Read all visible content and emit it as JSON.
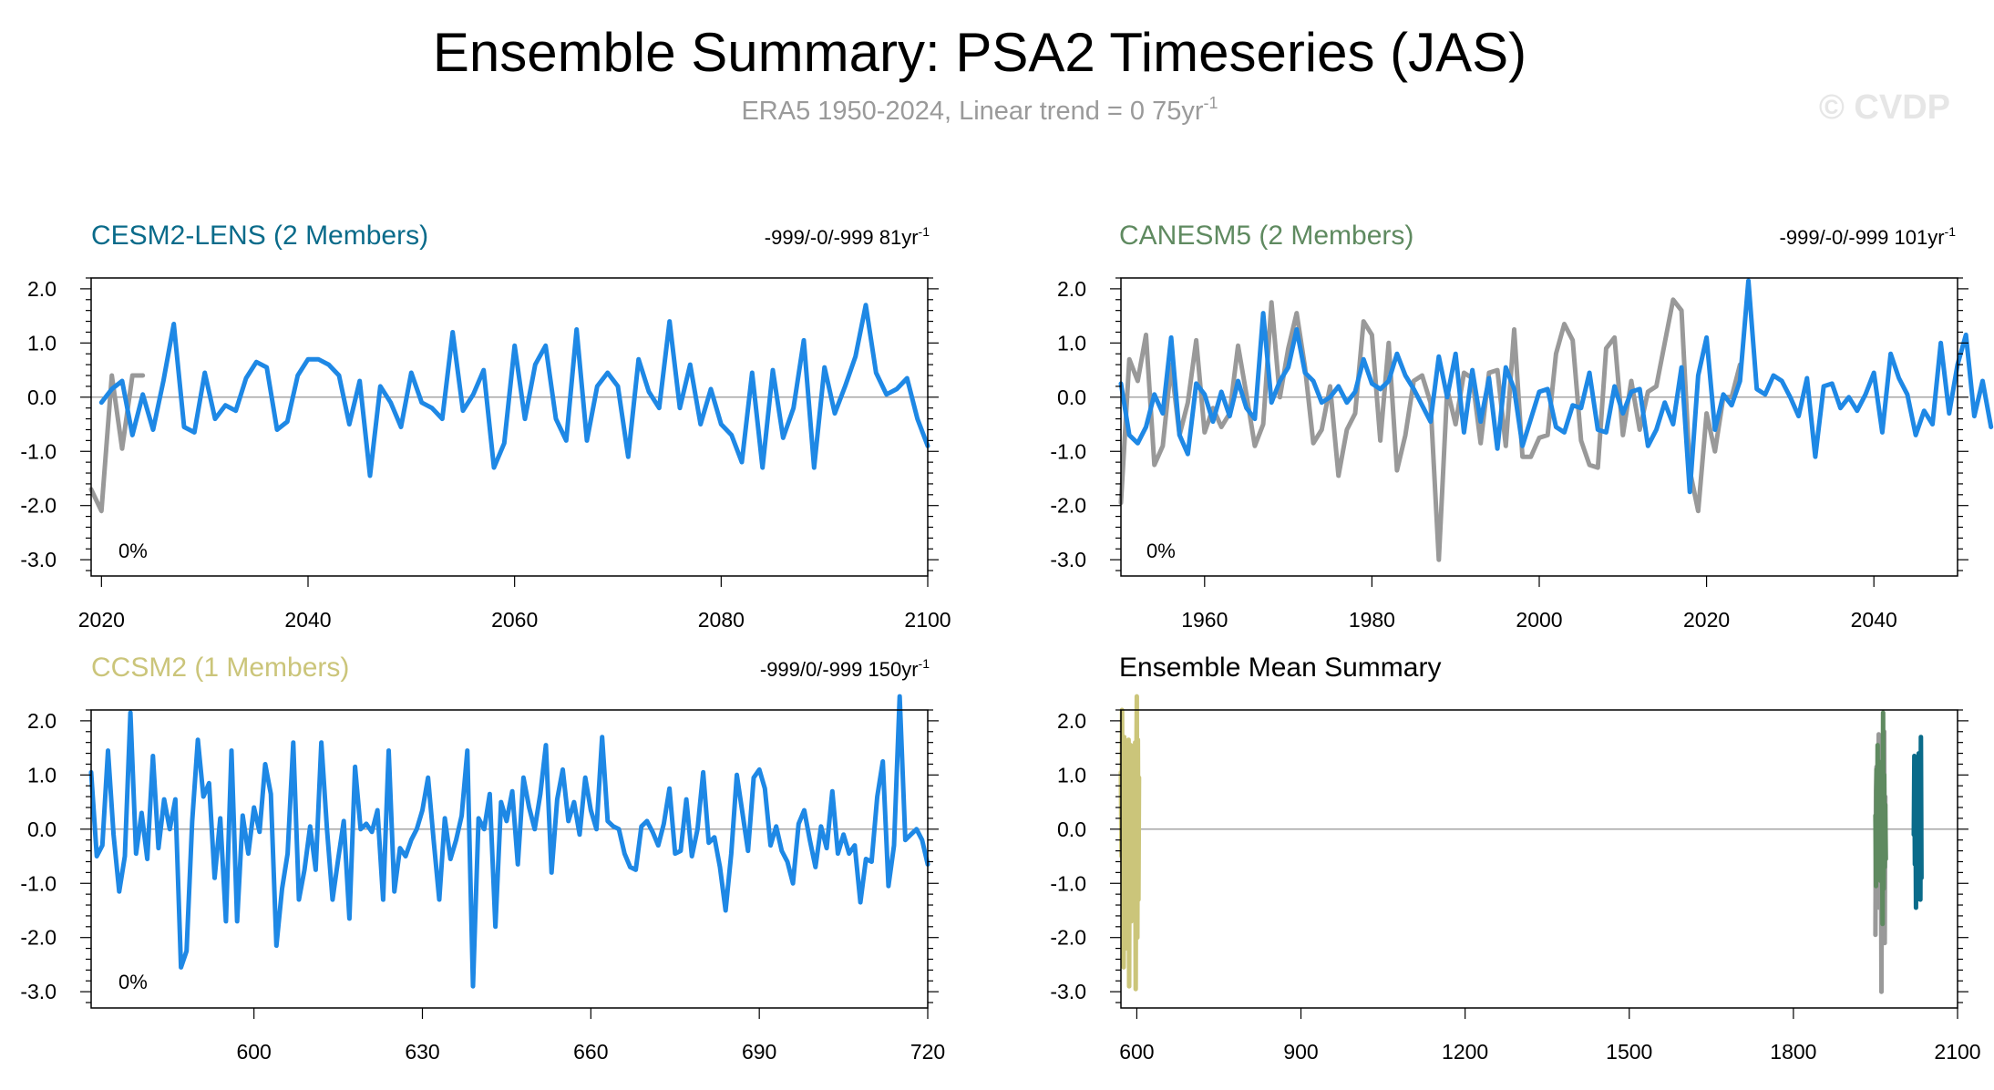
{
  "figure": {
    "title": "Ensemble Summary: PSA2 Timeseries (JAS)",
    "subtitle": "ERA5 1950-2024, Linear trend = 0 75yr",
    "subtitle_sup": "-1",
    "watermark": "© CVDP"
  },
  "colors": {
    "ensemble": "#1e88e5",
    "era5": "#999999",
    "cesm2": "#0a6b8a",
    "canesm5": "#5f8a60",
    "ccsm2": "#cbc57a"
  },
  "chart_data": [
    {
      "type": "line",
      "title": "CESM2-LENS (2 Members)",
      "trend_label": "-999/-0/-999 81yr",
      "trend_sup": "-1",
      "annotation": "0%",
      "xlim": [
        2019,
        2100
      ],
      "ylim": [
        -3.3,
        2.2
      ],
      "x_ticks": [
        2020,
        2040,
        2060,
        2080,
        2100
      ],
      "y_ticks": [
        -3,
        -2,
        -1,
        0,
        1,
        2
      ],
      "y_tick_labels": [
        "-3.0",
        "-2.0",
        "-1.0",
        "0.0",
        "1.0",
        "2.0"
      ],
      "series": [
        {
          "name": "ERA5",
          "color_key": "era5",
          "x_start": 2019,
          "values": [
            -1.7,
            -2.1,
            0.4,
            -0.95,
            0.4,
            0.4
          ]
        },
        {
          "name": "Ensemble",
          "color_key": "ensemble",
          "x_start": 2020,
          "values": [
            -0.1,
            0.15,
            0.3,
            -0.7,
            0.05,
            -0.6,
            0.3,
            1.35,
            -0.55,
            -0.65,
            0.45,
            -0.4,
            -0.15,
            -0.25,
            0.35,
            0.65,
            0.55,
            -0.6,
            -0.45,
            0.4,
            0.7,
            0.7,
            0.6,
            0.4,
            -0.5,
            0.3,
            -1.45,
            0.2,
            -0.1,
            -0.55,
            0.45,
            -0.1,
            -0.2,
            -0.4,
            1.2,
            -0.25,
            0.05,
            0.5,
            -1.3,
            -0.85,
            0.95,
            -0.4,
            0.6,
            0.95,
            -0.4,
            -0.8,
            1.25,
            -0.8,
            0.2,
            0.45,
            0.2,
            -1.1,
            0.7,
            0.1,
            -0.2,
            1.4,
            -0.2,
            0.6,
            -0.5,
            0.15,
            -0.5,
            -0.7,
            -1.2,
            0.45,
            -1.3,
            0.5,
            -0.75,
            -0.2,
            1.05,
            -1.3,
            0.55,
            -0.3,
            0.2,
            0.75,
            1.7,
            0.45,
            0.05,
            0.15,
            0.35,
            -0.4,
            -0.9
          ]
        }
      ]
    },
    {
      "type": "line",
      "title": "CANESM5 (2 Members)",
      "trend_label": "-999/-0/-999 101yr",
      "trend_sup": "-1",
      "annotation": "0%",
      "xlim": [
        1950,
        2050
      ],
      "ylim": [
        -3.3,
        2.2
      ],
      "x_ticks": [
        1960,
        1980,
        2000,
        2020,
        2040
      ],
      "y_ticks": [
        -3,
        -2,
        -1,
        0,
        1,
        2
      ],
      "y_tick_labels": [
        "-3.0",
        "-2.0",
        "-1.0",
        "0.0",
        "1.0",
        "2.0"
      ],
      "series": [
        {
          "name": "ERA5",
          "color_key": "era5",
          "x_start": 1950,
          "values": [
            -1.95,
            0.7,
            0.3,
            1.15,
            -1.25,
            -0.9,
            0.6,
            -0.7,
            -0.1,
            1.05,
            -0.65,
            -0.2,
            -0.55,
            -0.3,
            0.95,
            0.05,
            -0.9,
            -0.5,
            1.75,
            0.0,
            0.9,
            1.55,
            0.55,
            -0.85,
            -0.6,
            0.2,
            -1.45,
            -0.6,
            -0.3,
            1.4,
            1.15,
            -0.8,
            1.0,
            -1.35,
            -0.7,
            0.3,
            0.4,
            -0.1,
            -3.0,
            0.15,
            -0.5,
            0.45,
            0.35,
            -0.85,
            0.45,
            0.5,
            -0.9,
            1.25,
            -1.1,
            -1.1,
            -0.75,
            -0.7,
            0.8,
            1.35,
            1.05,
            -0.8,
            -1.25,
            -1.3,
            0.9,
            1.1,
            -0.7,
            0.3,
            -0.6,
            0.1,
            0.2,
            1.0,
            1.8,
            1.6,
            -1.35,
            -2.1,
            -0.3,
            -1.0,
            0.0,
            0.0,
            0.6
          ]
        },
        {
          "name": "Ensemble",
          "color_key": "ensemble",
          "x_start": 1950,
          "values": [
            0.25,
            -0.7,
            -0.85,
            -0.55,
            0.05,
            -0.3,
            1.1,
            -0.7,
            -1.05,
            0.25,
            0.05,
            -0.45,
            0.1,
            -0.35,
            0.3,
            -0.2,
            -0.4,
            1.55,
            -0.1,
            0.3,
            0.55,
            1.25,
            0.45,
            0.3,
            -0.1,
            0.0,
            0.2,
            -0.1,
            0.1,
            0.7,
            0.25,
            0.15,
            0.3,
            0.8,
            0.4,
            0.15,
            -0.15,
            -0.45,
            0.75,
            0.0,
            0.8,
            -0.65,
            0.5,
            -0.45,
            0.35,
            -0.95,
            0.55,
            0.15,
            -0.9,
            -0.4,
            0.1,
            0.15,
            -0.55,
            -0.65,
            -0.15,
            -0.2,
            0.45,
            -0.6,
            -0.65,
            0.2,
            -0.3,
            0.1,
            0.15,
            -0.9,
            -0.6,
            -0.1,
            -0.5,
            0.55,
            -1.75,
            0.4,
            1.1,
            -0.6,
            0.05,
            -0.15,
            0.3,
            2.15,
            0.15,
            0.05,
            0.4,
            0.3,
            0.0,
            -0.35,
            0.35,
            -1.1,
            0.2,
            0.25,
            -0.2,
            0.0,
            -0.25,
            0.05,
            0.45,
            -0.65,
            0.8,
            0.35,
            0.05,
            -0.7,
            -0.25,
            -0.5,
            1.0,
            -0.3,
            0.6,
            1.15,
            -0.35,
            0.3,
            -0.55
          ]
        }
      ]
    },
    {
      "type": "line",
      "title": "CCSM2 (1 Members)",
      "trend_label": "-999/0/-999 150yr",
      "trend_sup": "-1",
      "annotation": "0%",
      "xlim": [
        571,
        720
      ],
      "ylim": [
        -3.3,
        2.2
      ],
      "x_ticks": [
        600,
        630,
        660,
        690,
        720
      ],
      "y_ticks": [
        -3,
        -2,
        -1,
        0,
        1,
        2
      ],
      "y_tick_labels": [
        "-3.0",
        "-2.0",
        "-1.0",
        "0.0",
        "1.0",
        "2.0"
      ],
      "series": [
        {
          "name": "Ensemble",
          "color_key": "ensemble",
          "x_start": 571,
          "values": [
            1.05,
            -0.5,
            -0.3,
            1.45,
            -0.1,
            -1.15,
            -0.5,
            2.15,
            -0.45,
            0.3,
            -0.55,
            1.35,
            -0.35,
            0.55,
            0.0,
            0.55,
            -2.55,
            -2.25,
            0.15,
            1.65,
            0.6,
            0.85,
            -0.9,
            0.2,
            -1.7,
            1.45,
            -1.7,
            0.25,
            -0.45,
            0.4,
            -0.05,
            1.2,
            0.65,
            -2.15,
            -1.1,
            -0.45,
            1.6,
            -1.3,
            -0.75,
            0.05,
            -0.75,
            1.6,
            0.0,
            -1.3,
            -0.55,
            0.15,
            -1.65,
            1.15,
            0.0,
            0.1,
            -0.05,
            0.35,
            -1.3,
            1.45,
            -1.15,
            -0.35,
            -0.5,
            -0.2,
            0.0,
            0.35,
            0.95,
            -0.2,
            -1.3,
            0.2,
            -0.55,
            -0.2,
            0.25,
            1.45,
            -2.9,
            0.2,
            0.0,
            0.65,
            -1.8,
            0.5,
            0.15,
            0.7,
            -0.65,
            0.95,
            0.4,
            0.0,
            0.65,
            1.55,
            -0.8,
            0.55,
            1.1,
            0.15,
            0.5,
            -0.1,
            0.95,
            0.35,
            0.0,
            1.7,
            0.15,
            0.05,
            0.0,
            -0.45,
            -0.7,
            -0.75,
            0.05,
            0.15,
            -0.05,
            -0.3,
            0.1,
            0.75,
            -0.45,
            -0.4,
            0.55,
            -0.5,
            0.0,
            1.05,
            -0.25,
            -0.15,
            -0.7,
            -1.5,
            -0.45,
            1.0,
            0.3,
            -0.4,
            0.95,
            1.1,
            0.75,
            -0.3,
            0.05,
            -0.4,
            -0.6,
            -1.0,
            0.1,
            0.35,
            -0.2,
            -0.7,
            0.05,
            -0.35,
            0.7,
            -0.45,
            -0.1,
            -0.45,
            -0.3,
            -1.35,
            -0.55,
            -0.6,
            0.6,
            1.25,
            -1.05,
            -0.3,
            2.45,
            -0.2,
            -0.1,
            0.0,
            -0.2,
            -0.65
          ]
        }
      ]
    },
    {
      "type": "line",
      "title": "Ensemble Mean Summary",
      "xlim": [
        571,
        2100
      ],
      "ylim": [
        -3.3,
        2.2
      ],
      "x_ticks": [
        600,
        900,
        1200,
        1500,
        1800,
        2100
      ],
      "y_ticks": [
        -3,
        -2,
        -1,
        0,
        1,
        2
      ],
      "y_tick_labels": [
        "-3.0",
        "-2.0",
        "-1.0",
        "0.0",
        "1.0",
        "2.0"
      ],
      "series": [
        {
          "name": "CCSM2",
          "color_key": "ccsm2",
          "x_start": 571,
          "x_step": 1,
          "values": [
            1.05,
            -0.5,
            2.2,
            -1.2,
            1.45,
            -2.55,
            1.7,
            -1.15,
            1.6,
            -2.2,
            1.5,
            -1.65,
            1.4,
            -0.9,
            1.65,
            -2.9,
            1.35,
            -0.4,
            1.55,
            -1.7,
            1.2,
            -0.8,
            1.4,
            -1.3,
            1.0,
            -0.55,
            1.6,
            -2.95,
            0.8,
            2.45,
            -2.0,
            1.65,
            -1.3,
            0.95
          ]
        },
        {
          "name": "ERA5",
          "color_key": "era5",
          "x_start": 1950,
          "x_step": 1,
          "values": [
            -1.95,
            0.7,
            1.15,
            -1.25,
            1.05,
            -0.65,
            1.75,
            -1.45,
            1.4,
            -1.35,
            0.45,
            -3.0,
            1.25,
            -1.1,
            1.35,
            -1.3,
            1.8,
            -2.1,
            0.6
          ]
        },
        {
          "name": "CANESM5",
          "color_key": "canesm5",
          "x_start": 1950,
          "x_step": 1,
          "values": [
            0.25,
            -1.05,
            1.1,
            -0.7,
            1.55,
            -0.6,
            1.25,
            -0.45,
            0.8,
            -0.95,
            0.55,
            -0.9,
            0.45,
            -1.75,
            2.15,
            -1.1,
            1.0,
            -0.7,
            0.45,
            -0.55
          ]
        },
        {
          "name": "CESM2-LENS",
          "color_key": "cesm2",
          "x_start": 2020,
          "x_step": 1,
          "values": [
            -0.1,
            1.35,
            -0.65,
            0.7,
            -1.45,
            1.2,
            -1.3,
            1.25,
            -1.1,
            1.4,
            -1.2,
            1.05,
            -1.3,
            1.7,
            -0.9
          ]
        }
      ]
    }
  ]
}
